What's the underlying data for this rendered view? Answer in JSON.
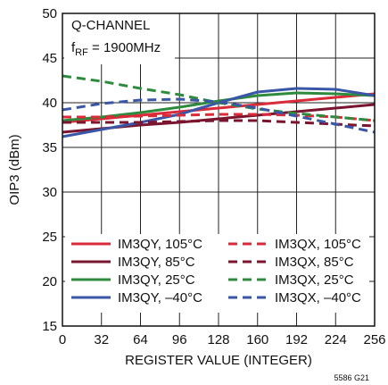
{
  "chart_data": {
    "type": "line",
    "annotation": {
      "line1": "Q-CHANNEL",
      "line2_main": "f",
      "line2_sub": "RF",
      "line2_rest": " = 1900MHz"
    },
    "xlabel": "REGISTER VALUE (INTEGER)",
    "ylabel": "OIP3 (dBm)",
    "xlim": [
      0,
      256
    ],
    "ylim": [
      15,
      50
    ],
    "xticks": [
      0,
      32,
      64,
      96,
      128,
      160,
      192,
      224,
      256
    ],
    "yticks": [
      15,
      20,
      25,
      30,
      35,
      40,
      45,
      50
    ],
    "grid": true,
    "legend_position": "bottom",
    "figure_code": "5586 G21",
    "series": [
      {
        "name": "IM3QY, 105°C",
        "color": "#d92b3a",
        "dash": false,
        "x": [
          0,
          32,
          64,
          96,
          128,
          160,
          192,
          224,
          256
        ],
        "y": [
          37.8,
          38.2,
          38.6,
          39.0,
          39.4,
          39.8,
          40.2,
          40.6,
          41.0
        ]
      },
      {
        "name": "IM3QY, 85°C",
        "color": "#7a1530",
        "dash": false,
        "x": [
          0,
          32,
          64,
          96,
          128,
          160,
          192,
          224,
          256
        ],
        "y": [
          36.7,
          37.1,
          37.5,
          37.8,
          38.2,
          38.6,
          39.0,
          39.4,
          39.8
        ]
      },
      {
        "name": "IM3QY, 25°C",
        "color": "#2e8b3e",
        "dash": false,
        "x": [
          0,
          32,
          64,
          96,
          128,
          160,
          192,
          224,
          256
        ],
        "y": [
          38.0,
          38.4,
          38.9,
          39.5,
          40.2,
          40.8,
          41.1,
          41.0,
          40.8
        ]
      },
      {
        "name": "IM3QY, –40°C",
        "color": "#3a56a6",
        "dash": false,
        "x": [
          0,
          32,
          64,
          96,
          128,
          160,
          192,
          224,
          256
        ],
        "y": [
          36.2,
          37.0,
          37.8,
          38.7,
          40.0,
          41.2,
          41.6,
          41.5,
          40.8
        ]
      },
      {
        "name": "IM3QX, 105°C",
        "color": "#d92b3a",
        "dash": true,
        "x": [
          0,
          32,
          64,
          96,
          128,
          160,
          192,
          224,
          256
        ],
        "y": [
          38.4,
          38.4,
          38.5,
          38.6,
          38.7,
          38.7,
          38.6,
          38.4,
          38.0
        ]
      },
      {
        "name": "IM3QX, 85°C",
        "color": "#7a1530",
        "dash": true,
        "x": [
          0,
          32,
          64,
          96,
          128,
          160,
          192,
          224,
          256
        ],
        "y": [
          37.8,
          37.8,
          37.8,
          37.9,
          38.0,
          38.0,
          37.8,
          37.6,
          37.4
        ]
      },
      {
        "name": "IM3QX, 25°C",
        "color": "#2e8b3e",
        "dash": true,
        "x": [
          0,
          32,
          64,
          96,
          128,
          160,
          192,
          224,
          256
        ],
        "y": [
          43.0,
          42.4,
          41.6,
          40.9,
          40.0,
          39.3,
          38.8,
          38.4,
          38.0
        ]
      },
      {
        "name": "IM3QX, –40°C",
        "color": "#3a56a6",
        "dash": true,
        "x": [
          0,
          32,
          64,
          96,
          128,
          160,
          192,
          224,
          256
        ],
        "y": [
          39.2,
          39.9,
          40.3,
          40.4,
          40.1,
          39.4,
          38.5,
          37.6,
          36.7
        ]
      }
    ]
  }
}
